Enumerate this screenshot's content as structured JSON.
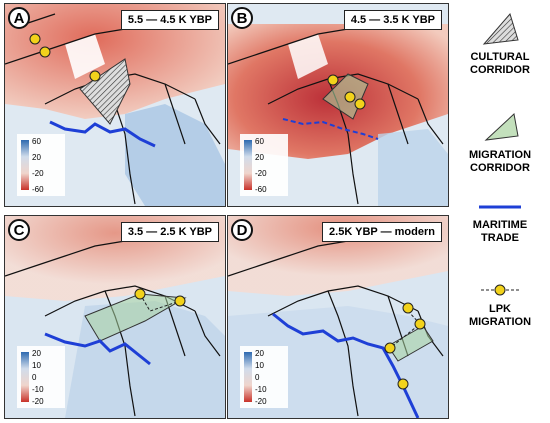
{
  "panels": [
    {
      "label": "A",
      "period": "5.5 — 4.5 K YBP",
      "colorbar_ticks": [
        "60",
        "20",
        "-20",
        "-60"
      ],
      "features": [
        "cultural-corridor",
        "maritime-trade",
        "lpk-points"
      ]
    },
    {
      "label": "B",
      "period": "4.5 — 3.5 K YBP",
      "colorbar_ticks": [
        "60",
        "20",
        "-20",
        "-60"
      ],
      "features": [
        "migration-corridor",
        "maritime-trade-dashed",
        "lpk-points"
      ]
    },
    {
      "label": "C",
      "period": "3.5 — 2.5 K YBP",
      "colorbar_ticks": [
        "20",
        "10",
        "0",
        "-10",
        "-20"
      ],
      "features": [
        "migration-corridor",
        "maritime-trade",
        "lpk-points"
      ]
    },
    {
      "label": "D",
      "period": "2.5K YBP — modern",
      "colorbar_ticks": [
        "20",
        "10",
        "0",
        "-10",
        "-20"
      ],
      "features": [
        "migration-corridor",
        "maritime-trade",
        "lpk-points"
      ]
    }
  ],
  "legend": {
    "cultural_corridor": [
      "CULTURAL",
      "CORRIDOR"
    ],
    "migration_corridor": [
      "MIGRATION",
      "CORRIDOR"
    ],
    "maritime_trade": [
      "MARITIME",
      "TRADE"
    ],
    "lpk_migration": [
      "LPK",
      "MIGRATION"
    ]
  },
  "colors": {
    "warm": "#d7433a",
    "cool": "#4a89c2",
    "maritime": "#1e3fd6",
    "lpk_point": "#f2d21b",
    "migration_fill": "#a9d3a0"
  }
}
